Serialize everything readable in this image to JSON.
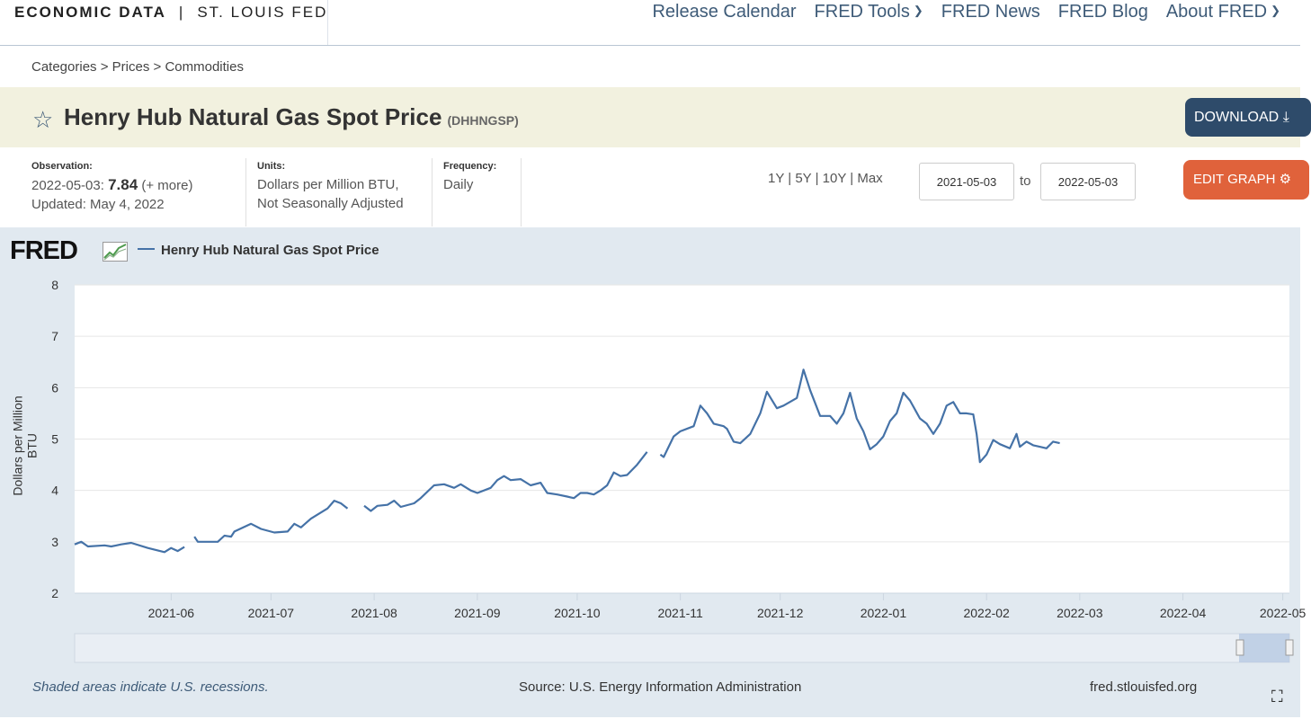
{
  "header": {
    "brand_bold": "ECONOMIC DATA",
    "brand_sep": "|",
    "brand_light": "ST. LOUIS FED",
    "nav": [
      "Release Calendar",
      "FRED Tools",
      "FRED News",
      "FRED Blog",
      "About FRED"
    ]
  },
  "breadcrumb": {
    "items": [
      "Categories",
      "Prices",
      "Commodities"
    ],
    "sep": ">"
  },
  "series": {
    "title": "Henry Hub Natural Gas Spot Price",
    "id": "(DHHNGSP)",
    "download_label": "DOWNLOAD"
  },
  "meta": {
    "observation_label": "Observation:",
    "obs_date": "2022-05-03:",
    "obs_value": "7.84",
    "obs_more": "(+ more)",
    "updated": "Updated: May 4, 2022",
    "units_label": "Units:",
    "units_line1": "Dollars per Million BTU,",
    "units_line2": "Not Seasonally Adjusted",
    "frequency_label": "Frequency:",
    "frequency": "Daily"
  },
  "controls": {
    "ranges": [
      "1Y",
      "5Y",
      "10Y",
      "Max"
    ],
    "range_sep": "|",
    "start_date": "2021-05-03",
    "to_label": "to",
    "end_date": "2022-05-03",
    "edit_label": "EDIT GRAPH"
  },
  "graph": {
    "logo": "FRED",
    "legend": "Henry Hub Natural Gas Spot Price",
    "ylabel": "Dollars per Million BTU",
    "footer_left": "Shaded areas indicate U.S. recessions.",
    "footer_center": "Source: U.S. Energy Information Administration",
    "footer_right": "fred.stlouisfed.org"
  },
  "colors": {
    "line": "#4572a7",
    "accent_dark": "#2e4b6a",
    "accent_orange": "#e0623b",
    "title_bg": "#f2f1df",
    "graph_bg": "#e1e9f0"
  },
  "chart_data": {
    "type": "line",
    "title": "",
    "xlabel": "",
    "ylabel": "Dollars per Million BTU",
    "ylim": [
      2,
      8
    ],
    "yticks": [
      2,
      3,
      4,
      5,
      6,
      7,
      8
    ],
    "xticks": [
      "2021-06",
      "2021-07",
      "2021-08",
      "2021-09",
      "2021-10",
      "2021-11",
      "2021-12",
      "2022-01",
      "2022-02",
      "2022-03",
      "2022-04",
      "2022-05"
    ],
    "x_range": [
      "2021-05-03",
      "2022-05-03"
    ],
    "grid": "horizontal",
    "series": [
      {
        "name": "Henry Hub Natural Gas Spot Price",
        "segments": [
          [
            [
              "2021-05-03",
              2.95
            ],
            [
              "2021-05-05",
              3.0
            ],
            [
              "2021-05-07",
              2.91
            ],
            [
              "2021-05-12",
              2.93
            ],
            [
              "2021-05-14",
              2.91
            ],
            [
              "2021-05-17",
              2.95
            ],
            [
              "2021-05-20",
              2.98
            ],
            [
              "2021-05-25",
              2.88
            ],
            [
              "2021-05-30",
              2.8
            ],
            [
              "2021-06-01",
              2.88
            ],
            [
              "2021-06-03",
              2.82
            ],
            [
              "2021-06-05",
              2.9
            ]
          ],
          [
            [
              "2021-06-08",
              3.1
            ],
            [
              "2021-06-09",
              3.0
            ],
            [
              "2021-06-15",
              3.0
            ],
            [
              "2021-06-17",
              3.12
            ],
            [
              "2021-06-19",
              3.1
            ],
            [
              "2021-06-20",
              3.2
            ],
            [
              "2021-06-25",
              3.35
            ],
            [
              "2021-06-28",
              3.25
            ],
            [
              "2021-07-02",
              3.18
            ],
            [
              "2021-07-06",
              3.2
            ],
            [
              "2021-07-08",
              3.35
            ],
            [
              "2021-07-10",
              3.28
            ],
            [
              "2021-07-13",
              3.45
            ],
            [
              "2021-07-18",
              3.65
            ],
            [
              "2021-07-20",
              3.8
            ],
            [
              "2021-07-22",
              3.75
            ],
            [
              "2021-07-24",
              3.65
            ]
          ],
          [
            [
              "2021-07-29",
              3.7
            ],
            [
              "2021-07-31",
              3.6
            ],
            [
              "2021-08-02",
              3.7
            ],
            [
              "2021-08-05",
              3.72
            ],
            [
              "2021-08-07",
              3.8
            ],
            [
              "2021-08-09",
              3.68
            ],
            [
              "2021-08-13",
              3.75
            ],
            [
              "2021-08-15",
              3.85
            ],
            [
              "2021-08-19",
              4.1
            ],
            [
              "2021-08-22",
              4.12
            ],
            [
              "2021-08-25",
              4.05
            ],
            [
              "2021-08-27",
              4.12
            ],
            [
              "2021-08-30",
              4.0
            ],
            [
              "2021-09-01",
              3.95
            ],
            [
              "2021-09-05",
              4.05
            ],
            [
              "2021-09-07",
              4.2
            ],
            [
              "2021-09-09",
              4.28
            ],
            [
              "2021-09-11",
              4.2
            ],
            [
              "2021-09-14",
              4.22
            ],
            [
              "2021-09-17",
              4.1
            ],
            [
              "2021-09-20",
              4.15
            ],
            [
              "2021-09-22",
              3.95
            ],
            [
              "2021-09-25",
              3.92
            ],
            [
              "2021-09-28",
              3.88
            ],
            [
              "2021-09-30",
              3.85
            ],
            [
              "2021-10-02",
              3.95
            ],
            [
              "2021-10-04",
              3.95
            ],
            [
              "2021-10-06",
              3.92
            ],
            [
              "2021-10-08",
              4.0
            ],
            [
              "2021-10-10",
              4.1
            ],
            [
              "2021-10-12",
              4.35
            ],
            [
              "2021-10-14",
              4.28
            ],
            [
              "2021-10-16",
              4.3
            ],
            [
              "2021-10-19",
              4.5
            ],
            [
              "2021-10-22",
              4.75
            ]
          ],
          [
            [
              "2021-10-26",
              4.7
            ],
            [
              "2021-10-27",
              4.65
            ],
            [
              "2021-10-30",
              5.05
            ],
            [
              "2021-11-01",
              5.15
            ],
            [
              "2021-11-05",
              5.25
            ],
            [
              "2021-11-07",
              5.65
            ],
            [
              "2021-11-09",
              5.5
            ],
            [
              "2021-11-11",
              5.3
            ],
            [
              "2021-11-14",
              5.25
            ],
            [
              "2021-11-15",
              5.2
            ],
            [
              "2021-11-17",
              4.95
            ],
            [
              "2021-11-19",
              4.92
            ],
            [
              "2021-11-22",
              5.1
            ],
            [
              "2021-11-25",
              5.5
            ],
            [
              "2021-11-27",
              5.92
            ],
            [
              "2021-11-30",
              5.6
            ],
            [
              "2021-12-02",
              5.65
            ],
            [
              "2021-12-06",
              5.8
            ],
            [
              "2021-12-08",
              6.35
            ],
            [
              "2021-12-10",
              5.95
            ],
            [
              "2021-12-13",
              5.45
            ],
            [
              "2021-12-16",
              5.45
            ],
            [
              "2021-12-18",
              5.3
            ],
            [
              "2021-12-20",
              5.5
            ],
            [
              "2021-12-22",
              5.9
            ],
            [
              "2021-12-24",
              5.4
            ],
            [
              "2021-12-26",
              5.15
            ],
            [
              "2021-12-28",
              4.8
            ],
            [
              "2021-12-30",
              4.9
            ],
            [
              "2022-01-01",
              5.05
            ],
            [
              "2022-01-03",
              5.35
            ],
            [
              "2022-01-05",
              5.5
            ],
            [
              "2022-01-07",
              5.9
            ],
            [
              "2022-01-09",
              5.75
            ],
            [
              "2022-01-12",
              5.4
            ],
            [
              "2022-01-14",
              5.3
            ],
            [
              "2022-01-16",
              5.1
            ],
            [
              "2022-01-18",
              5.3
            ],
            [
              "2022-01-20",
              5.65
            ],
            [
              "2022-01-22",
              5.72
            ],
            [
              "2022-01-24",
              5.5
            ],
            [
              "2022-01-26",
              5.5
            ],
            [
              "2022-01-28",
              5.48
            ],
            [
              "2022-01-29",
              5.1
            ],
            [
              "2022-01-30",
              4.55
            ],
            [
              "2022-02-01",
              4.7
            ],
            [
              "2022-02-03",
              4.98
            ],
            [
              "2022-02-05",
              4.9
            ],
            [
              "2022-02-08",
              4.82
            ],
            [
              "2022-02-10",
              5.1
            ],
            [
              "2022-02-11",
              4.85
            ],
            [
              "2022-02-13",
              4.95
            ],
            [
              "2022-02-15",
              4.88
            ],
            [
              "2022-02-17",
              4.85
            ],
            [
              "2022-02-19",
              4.82
            ],
            [
              "2022-02-21",
              4.95
            ],
            [
              "2022-02-23",
              4.92
            ]
          ]
        ]
      }
    ],
    "x_axis_approx_note": ""
  }
}
